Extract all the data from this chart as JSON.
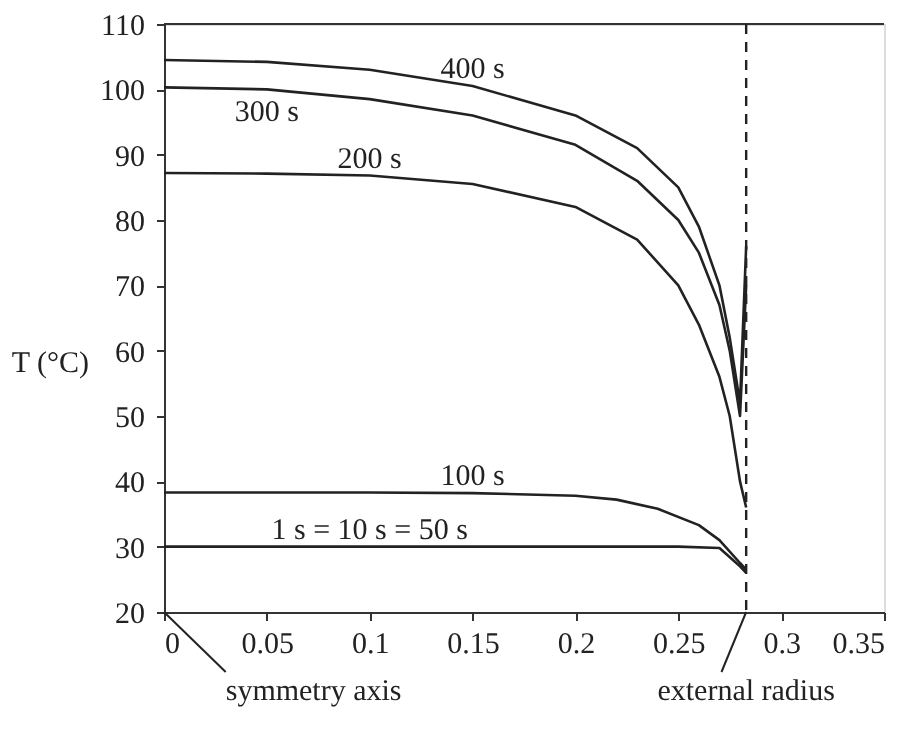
{
  "chart_data": {
    "type": "line",
    "ylabel": "T (°C)",
    "xlim": [
      0,
      0.35
    ],
    "ylim": [
      20,
      110
    ],
    "xticks": [
      0,
      0.05,
      0.1,
      0.15,
      0.2,
      0.25,
      0.3,
      0.35
    ],
    "yticks": [
      20,
      30,
      40,
      50,
      60,
      70,
      80,
      90,
      100,
      110
    ],
    "grid": false,
    "legend": false,
    "marker": "none",
    "line_style": "solid",
    "series": [
      {
        "name": "400 s",
        "color": "#222222",
        "x": [
          0,
          0.05,
          0.1,
          0.15,
          0.2,
          0.23,
          0.25,
          0.26,
          0.27,
          0.275,
          0.28,
          0.283
        ],
        "values": [
          104.5,
          104.2,
          103,
          100.5,
          96,
          91,
          85,
          79,
          70,
          62,
          52,
          76
        ]
      },
      {
        "name": "300 s",
        "color": "#222222",
        "x": [
          0,
          0.05,
          0.1,
          0.15,
          0.2,
          0.23,
          0.25,
          0.26,
          0.27,
          0.275,
          0.28,
          0.283
        ],
        "values": [
          100.3,
          100,
          98.5,
          96,
          91.5,
          86,
          80,
          75,
          67,
          60,
          50,
          70
        ]
      },
      {
        "name": "200 s",
        "color": "#222222",
        "x": [
          0,
          0.05,
          0.1,
          0.15,
          0.2,
          0.23,
          0.25,
          0.26,
          0.27,
          0.275,
          0.28,
          0.283
        ],
        "values": [
          87.2,
          87.1,
          86.8,
          85.5,
          82,
          77,
          70,
          64,
          56,
          50,
          40,
          36
        ]
      },
      {
        "name": "100 s",
        "color": "#222222",
        "x": [
          0,
          0.1,
          0.15,
          0.2,
          0.22,
          0.24,
          0.26,
          0.27,
          0.28,
          0.283
        ],
        "values": [
          38.3,
          38.3,
          38.2,
          37.8,
          37.2,
          35.8,
          33.3,
          31,
          27.5,
          26.5
        ]
      },
      {
        "name": "1 s = 10 s = 50 s",
        "color": "#222222",
        "x": [
          0,
          0.1,
          0.25,
          0.27,
          0.28,
          0.283
        ],
        "values": [
          30,
          30,
          30,
          29.8,
          27,
          26
        ]
      }
    ],
    "ref_lines": [
      {
        "axis": "x",
        "value": 0.283,
        "line_style": "dashed",
        "color": "#222222"
      }
    ],
    "annotations": [
      "symmetry axis",
      {
        "text": "external radius",
        "x": 0.283,
        "y": 20
      }
    ]
  }
}
